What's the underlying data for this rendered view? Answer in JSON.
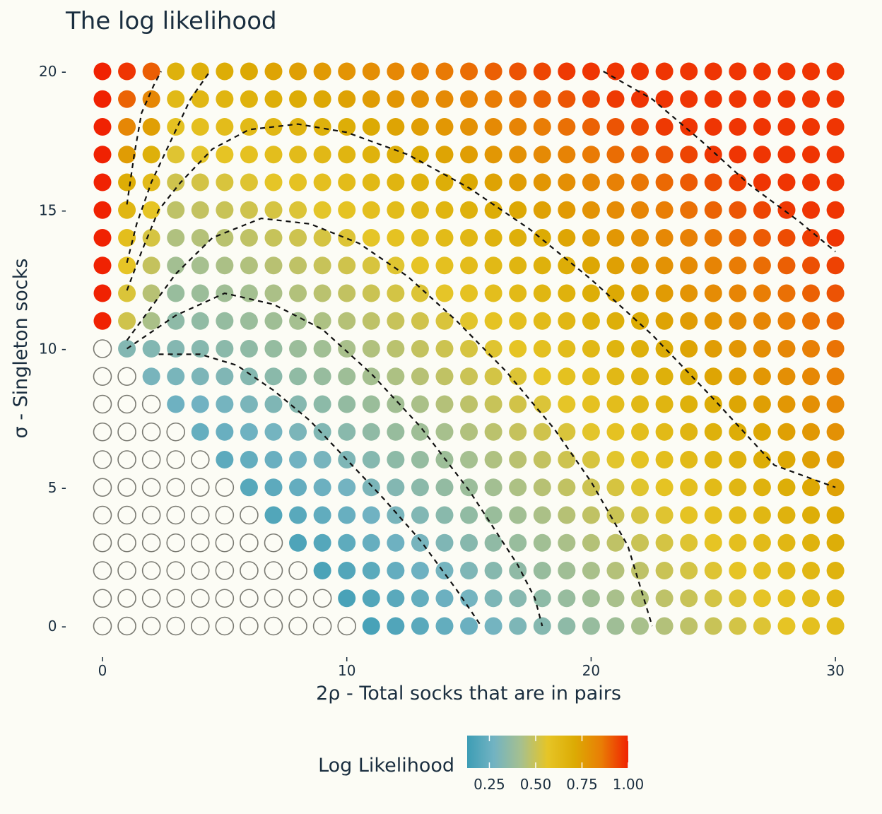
{
  "chart_data": {
    "type": "heatmap",
    "mark": "dot-grid",
    "title": "The log likelihood",
    "xlabel": "2ρ - Total socks that are in pairs",
    "ylabel": "σ - Singleton socks",
    "xlim": [
      0,
      30
    ],
    "ylim": [
      0,
      20
    ],
    "x_ticks": [
      0,
      10,
      20,
      30
    ],
    "x_tick_labels": [
      "0",
      "10",
      "20",
      "30"
    ],
    "y_ticks": [
      0,
      5,
      10,
      15,
      20
    ],
    "y_tick_labels": [
      "0 -",
      "5 -",
      "10 -",
      "15 -",
      "20 -"
    ],
    "x_step": 1,
    "y_step": 1,
    "grid": false,
    "legend": {
      "title": "Log Likelihood",
      "position": "bottom",
      "ticks": [
        0.25,
        0.5,
        0.75,
        1.0
      ],
      "tick_labels": [
        "0.25",
        "0.50",
        "0.75",
        "1.00"
      ],
      "colors": [
        "#3d9db5",
        "#72b3c2",
        "#a6c08f",
        "#e6c526",
        "#dcab04",
        "#e97d05",
        "#f02202"
      ]
    },
    "impossible_marker": "hollow circle where 2ρ + σ < 11 (no value)",
    "value_model": "approximate normalized log likelihood: v = clamp(0.2 + 0.031*|11 - (2ρ+σ)| + 0.06*((σ - 0.44*(2ρ+σ))/(2ρ+σ))^2 ... ) ; column 2ρ=0 with σ>=11 is 1.00",
    "contours": [
      {
        "level": 1,
        "points": [
          [
            1.0,
            15.2
          ],
          [
            1.3,
            17.0
          ],
          [
            1.6,
            18.5
          ],
          [
            2.1,
            19.5
          ],
          [
            2.4,
            20.0
          ]
        ]
      },
      {
        "level": 2,
        "points": [
          [
            1.0,
            13.1
          ],
          [
            1.4,
            14.5
          ],
          [
            2.0,
            16.0
          ],
          [
            2.8,
            17.5
          ],
          [
            3.6,
            19.0
          ],
          [
            4.4,
            20.0
          ]
        ]
      },
      {
        "level": 3,
        "points": [
          [
            1.0,
            12.1
          ],
          [
            1.6,
            13.5
          ],
          [
            2.3,
            15.0
          ],
          [
            3.2,
            16.0
          ],
          [
            4.5,
            17.2
          ],
          [
            6.0,
            17.9
          ],
          [
            8.0,
            18.1
          ],
          [
            10.0,
            17.8
          ],
          [
            12.5,
            17.0
          ],
          [
            15.0,
            15.8
          ],
          [
            17.5,
            14.3
          ],
          [
            20.0,
            12.5
          ],
          [
            22.5,
            10.5
          ],
          [
            25.0,
            8.2
          ],
          [
            27.5,
            5.8
          ],
          [
            30.0,
            5.0
          ]
        ]
      },
      {
        "level": 4,
        "points": [
          [
            1.0,
            10.3
          ],
          [
            2.0,
            11.5
          ],
          [
            3.0,
            12.7
          ],
          [
            4.5,
            14.0
          ],
          [
            6.5,
            14.7
          ],
          [
            8.5,
            14.5
          ],
          [
            10.5,
            13.8
          ],
          [
            12.5,
            12.6
          ],
          [
            14.5,
            11.0
          ],
          [
            16.5,
            9.2
          ],
          [
            18.5,
            7.1
          ],
          [
            20.0,
            5.2
          ],
          [
            21.5,
            2.9
          ],
          [
            22.5,
            0.0
          ]
        ]
      },
      {
        "level": 5,
        "points": [
          [
            1.0,
            10.0
          ],
          [
            3.0,
            11.2
          ],
          [
            5.0,
            12.0
          ],
          [
            7.0,
            11.6
          ],
          [
            9.0,
            10.7
          ],
          [
            11.0,
            9.1
          ],
          [
            13.0,
            7.2
          ],
          [
            15.0,
            4.9
          ],
          [
            17.0,
            2.2
          ],
          [
            17.7,
            1.0
          ],
          [
            18.0,
            0.0
          ]
        ]
      },
      {
        "level": 6,
        "points": [
          [
            2.3,
            9.8
          ],
          [
            4.0,
            9.8
          ],
          [
            5.5,
            9.4
          ],
          [
            7.0,
            8.5
          ],
          [
            8.5,
            7.4
          ],
          [
            10.0,
            6.0
          ],
          [
            11.5,
            4.6
          ],
          [
            13.0,
            3.1
          ],
          [
            14.5,
            1.3
          ],
          [
            15.5,
            0.0
          ]
        ]
      },
      {
        "level": 7,
        "points": [
          [
            20.5,
            20.0
          ],
          [
            22.5,
            19.0
          ],
          [
            24.5,
            17.5
          ],
          [
            26.5,
            15.9
          ],
          [
            28.5,
            14.6
          ],
          [
            30.0,
            13.5
          ]
        ]
      }
    ]
  },
  "colors": {
    "background": "#fcfcf5",
    "text": "#1a2e3f",
    "hollow_stroke": "#7a7a72",
    "contour": "#111111"
  }
}
